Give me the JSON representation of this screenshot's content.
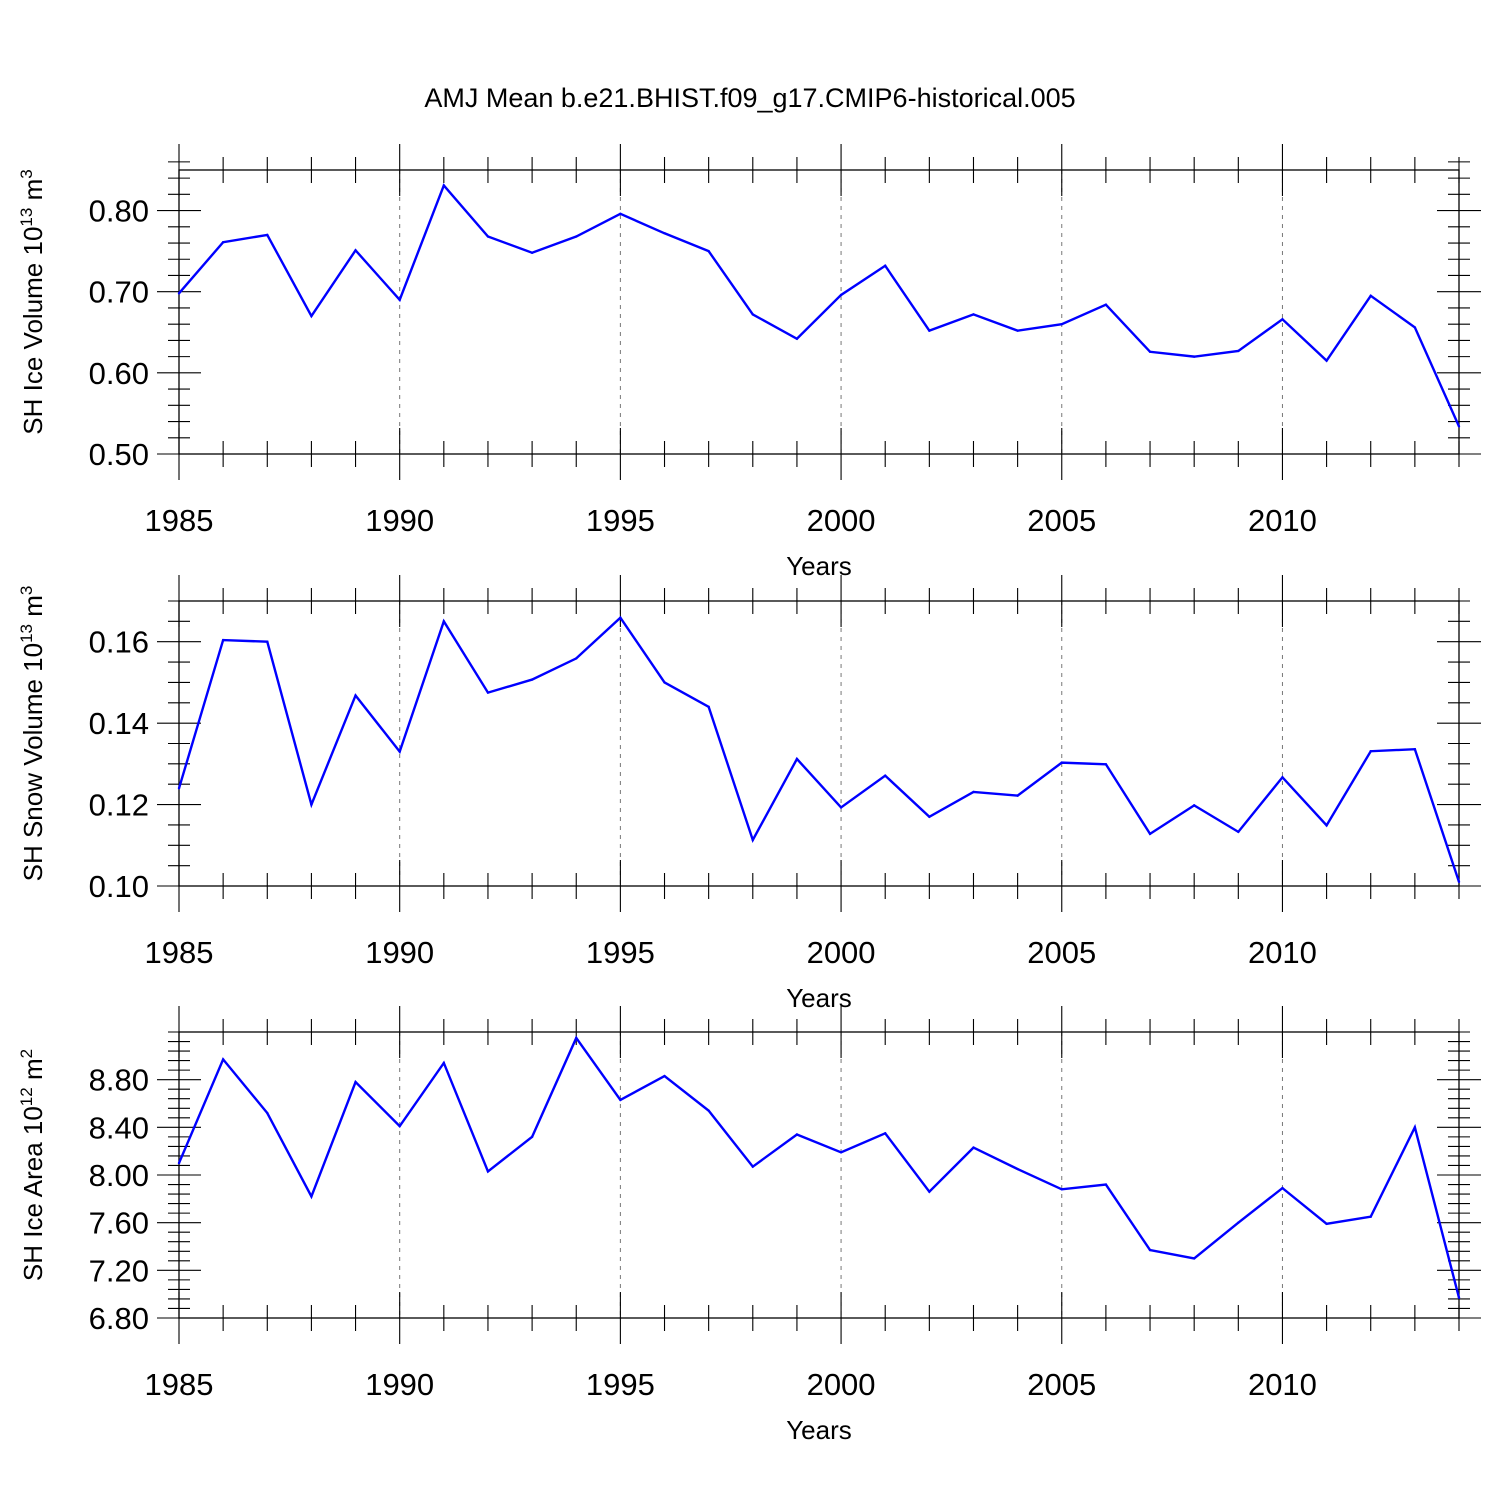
{
  "title": "AMJ Mean b.e21.BHIST.f09_g17.CMIP6-historical.005",
  "colors": {
    "series": "#0000ff",
    "axis": "#000000",
    "grid": "#777777"
  },
  "chart_data": [
    {
      "type": "line",
      "xlabel": "Years",
      "ylabel": {
        "main": "SH Ice Volume 10",
        "exp": "13",
        "unit": " m",
        "unit_exp": "3"
      },
      "xlim": [
        1985,
        2014
      ],
      "ylim": [
        0.5,
        0.85
      ],
      "xticks": [
        1985,
        1990,
        1995,
        2000,
        2005,
        2010
      ],
      "xtick_labels": [
        "1985",
        "1990",
        "1995",
        "2000",
        "2005",
        "2010"
      ],
      "yticks": [
        0.5,
        0.6,
        0.7,
        0.8
      ],
      "ytick_labels": [
        "0.50",
        "0.60",
        "0.70",
        "0.80"
      ],
      "yminor_step": 0.02,
      "grid": "vertical dashed at major x ticks",
      "x": [
        1985,
        1986,
        1987,
        1988,
        1989,
        1990,
        1991,
        1992,
        1993,
        1994,
        1995,
        1996,
        1997,
        1998,
        1999,
        2000,
        2001,
        2002,
        2003,
        2004,
        2005,
        2006,
        2007,
        2008,
        2009,
        2010,
        2011,
        2012,
        2013,
        2014
      ],
      "series": [
        {
          "values": [
            0.698,
            0.761,
            0.77,
            0.67,
            0.751,
            0.69,
            0.831,
            0.768,
            0.748,
            0.768,
            0.796,
            0.772,
            0.75,
            0.672,
            0.642,
            0.696,
            0.732,
            0.652,
            0.672,
            0.652,
            0.66,
            0.684,
            0.626,
            0.62,
            0.627,
            0.666,
            0.615,
            0.695,
            0.656,
            0.534
          ]
        }
      ]
    },
    {
      "type": "line",
      "xlabel": "Years",
      "ylabel": {
        "main": "SH Snow Volume 10",
        "exp": "13",
        "unit": " m",
        "unit_exp": "3"
      },
      "xlim": [
        1985,
        2014
      ],
      "ylim": [
        0.1,
        0.17
      ],
      "xticks": [
        1985,
        1990,
        1995,
        2000,
        2005,
        2010
      ],
      "xtick_labels": [
        "1985",
        "1990",
        "1995",
        "2000",
        "2005",
        "2010"
      ],
      "yticks": [
        0.1,
        0.12,
        0.14,
        0.16
      ],
      "ytick_labels": [
        "0.10",
        "0.12",
        "0.14",
        "0.16"
      ],
      "yminor_step": 0.005,
      "grid": "vertical dashed at major x ticks",
      "x": [
        1985,
        1986,
        1987,
        1988,
        1989,
        1990,
        1991,
        1992,
        1993,
        1994,
        1995,
        1996,
        1997,
        1998,
        1999,
        2000,
        2001,
        2002,
        2003,
        2004,
        2005,
        2006,
        2007,
        2008,
        2009,
        2010,
        2011,
        2012,
        2013,
        2014
      ],
      "series": [
        {
          "values": [
            0.124,
            0.1604,
            0.16,
            0.12,
            0.1468,
            0.133,
            0.165,
            0.1475,
            0.1507,
            0.1559,
            0.1659,
            0.15,
            0.144,
            0.1113,
            0.1312,
            0.1193,
            0.1271,
            0.117,
            0.1231,
            0.1222,
            0.1303,
            0.1299,
            0.1128,
            0.1198,
            0.1133,
            0.1267,
            0.1149,
            0.1331,
            0.1336,
            0.101
          ]
        }
      ]
    },
    {
      "type": "line",
      "xlabel": "Years",
      "ylabel": {
        "main": "SH Ice Area 10",
        "exp": "12",
        "unit": " m",
        "unit_exp": "2"
      },
      "xlim": [
        1985,
        2014
      ],
      "ylim": [
        6.8,
        9.2
      ],
      "xticks": [
        1985,
        1990,
        1995,
        2000,
        2005,
        2010
      ],
      "xtick_labels": [
        "1985",
        "1990",
        "1995",
        "2000",
        "2005",
        "2010"
      ],
      "yticks": [
        6.8,
        7.2,
        7.6,
        8.0,
        8.4,
        8.8
      ],
      "ytick_labels": [
        "6.80",
        "7.20",
        "7.60",
        "8.00",
        "8.40",
        "8.80"
      ],
      "yminor_step": 0.08,
      "grid": "vertical dashed at major x ticks",
      "x": [
        1985,
        1986,
        1987,
        1988,
        1989,
        1990,
        1991,
        1992,
        1993,
        1994,
        1995,
        1996,
        1997,
        1998,
        1999,
        2000,
        2001,
        2002,
        2003,
        2004,
        2005,
        2006,
        2007,
        2008,
        2009,
        2010,
        2011,
        2012,
        2013,
        2014
      ],
      "series": [
        {
          "values": [
            8.1,
            8.97,
            8.52,
            7.82,
            8.78,
            8.41,
            8.94,
            8.03,
            8.32,
            9.15,
            8.63,
            8.83,
            8.54,
            8.07,
            8.34,
            8.19,
            8.35,
            7.86,
            8.23,
            8.05,
            7.88,
            7.92,
            7.37,
            7.3,
            7.6,
            7.89,
            7.59,
            7.65,
            8.4,
            6.97
          ]
        }
      ]
    }
  ]
}
